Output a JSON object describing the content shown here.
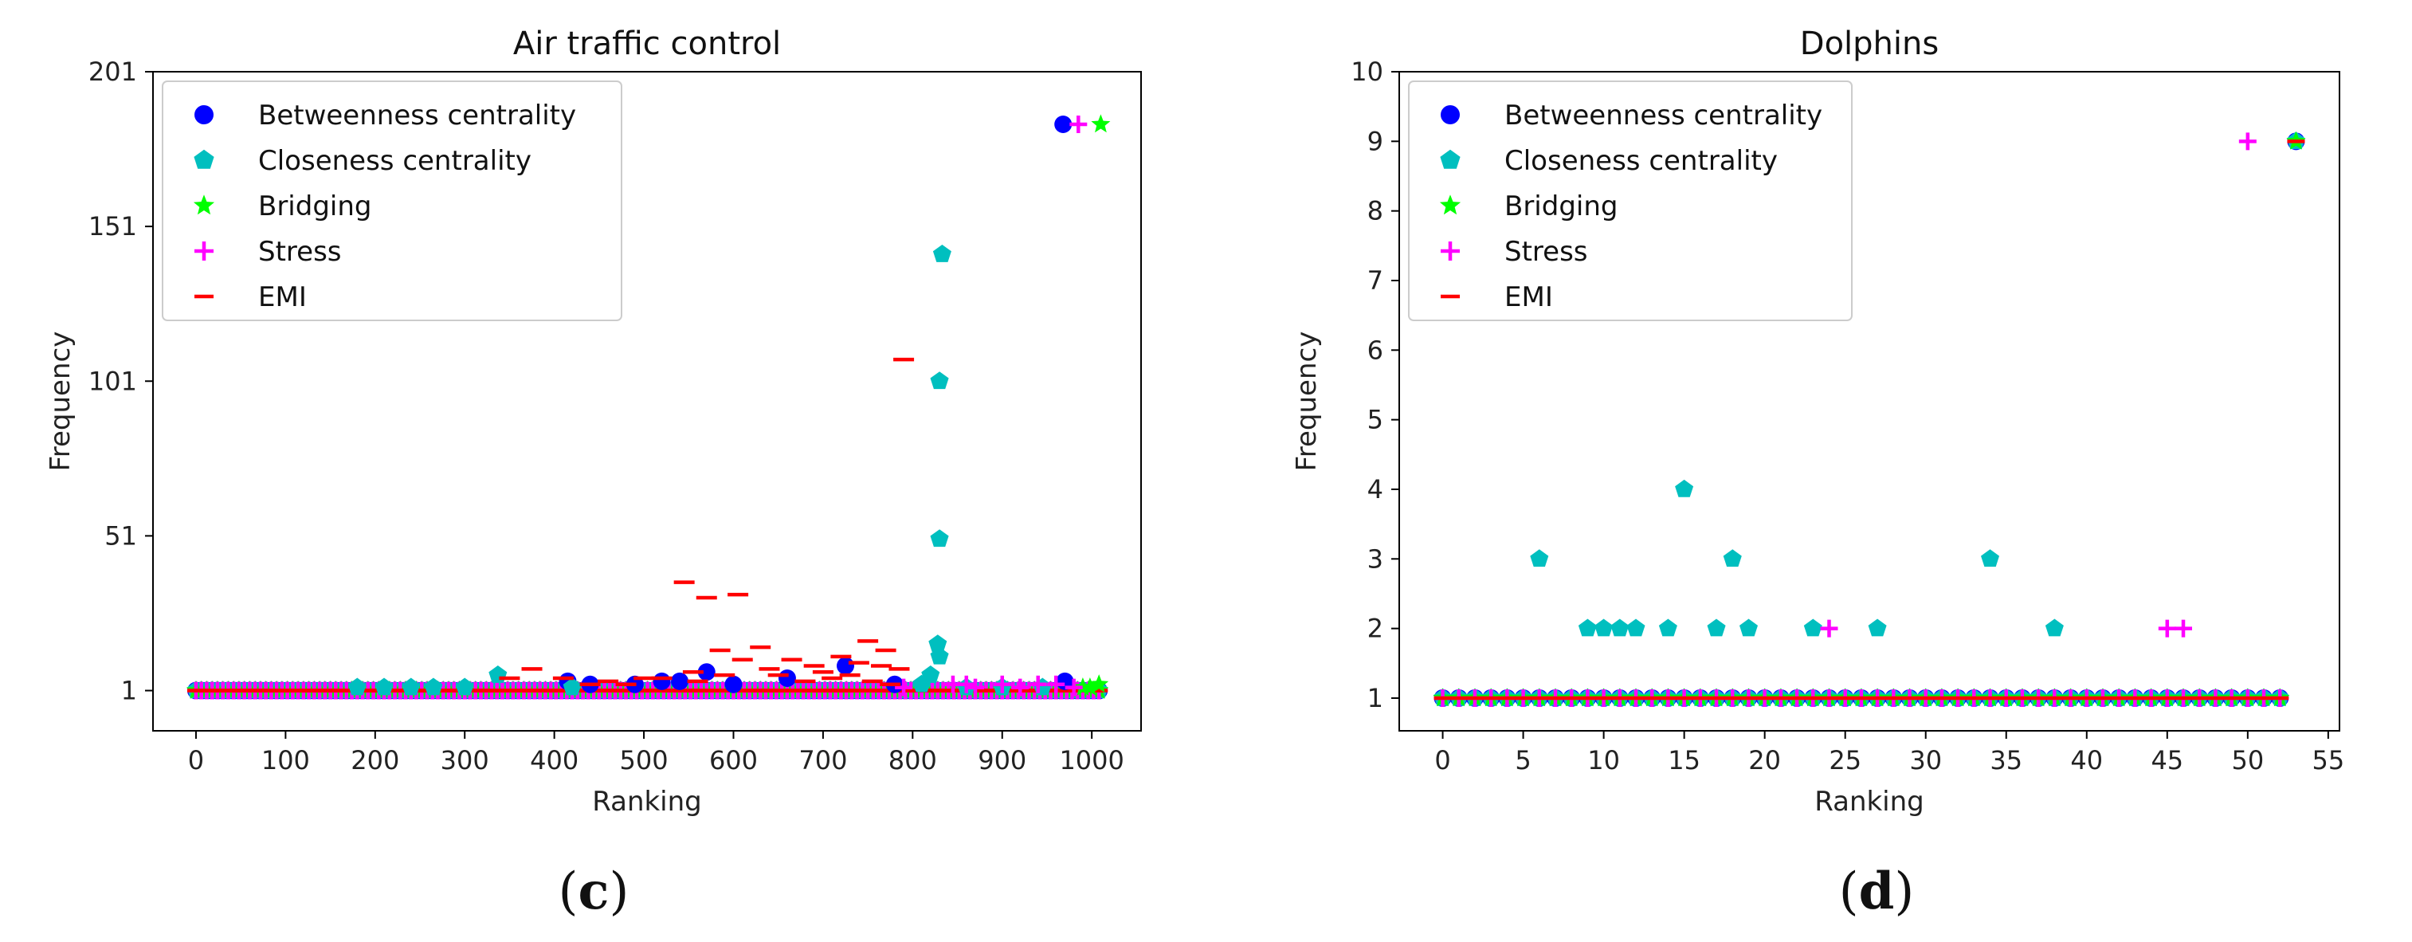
{
  "colors": {
    "betweenness": "#0000ff",
    "closeness": "#00bfbf",
    "bridging": "#00ff00",
    "stress": "#ff00ff",
    "emi": "#ff0000"
  },
  "legend_labels": [
    "Betweenness centrality",
    "Closeness centrality",
    "Bridging",
    "Stress",
    "EMI"
  ],
  "chart_data": [
    {
      "type": "scatter",
      "id": "c",
      "title": "Air traffic control",
      "xlabel": "Ranking",
      "ylabel": "Frequency",
      "xlim": [
        -48,
        1055
      ],
      "ylim": [
        -12,
        201
      ],
      "xticks": [
        0,
        100,
        200,
        300,
        400,
        500,
        600,
        700,
        800,
        900,
        1000
      ],
      "xtick_labels": [
        "0",
        "100",
        "200",
        "300",
        "400",
        "500",
        "600",
        "700",
        "800",
        "900",
        "1000"
      ],
      "yticks": [
        1,
        51,
        101,
        151,
        201
      ],
      "ytick_labels": [
        "1",
        "51",
        "101",
        "151",
        "201"
      ],
      "legend_position": "top-left",
      "caption_open": "(",
      "caption_letter": "c",
      "caption_close": ")",
      "baseline": {
        "start": 0,
        "end": 1010,
        "step": 6,
        "value": 1
      },
      "series": [
        {
          "name": "Betweenness centrality",
          "key": "betweenness",
          "marker": "circle",
          "points": [
            [
              968,
              184
            ],
            [
              570,
              7
            ],
            [
              725,
              9
            ],
            [
              660,
              5
            ],
            [
              415,
              4
            ],
            [
              520,
              4
            ],
            [
              540,
              4
            ],
            [
              490,
              3
            ],
            [
              440,
              3
            ],
            [
              600,
              3
            ],
            [
              970,
              4
            ],
            [
              780,
              3
            ]
          ]
        },
        {
          "name": "Closeness centrality",
          "key": "closeness",
          "marker": "pentagon",
          "points": [
            [
              833,
              142
            ],
            [
              830,
              101
            ],
            [
              830,
              50
            ],
            [
              828,
              16
            ],
            [
              830,
              12
            ],
            [
              820,
              6
            ],
            [
              337,
              6
            ],
            [
              810,
              3
            ],
            [
              180,
              2
            ],
            [
              210,
              2
            ],
            [
              240,
              2
            ],
            [
              265,
              2
            ],
            [
              300,
              2
            ],
            [
              420,
              2
            ],
            [
              860,
              2
            ],
            [
              900,
              2
            ],
            [
              945,
              2
            ]
          ]
        },
        {
          "name": "Bridging",
          "key": "bridging",
          "marker": "star",
          "points": [
            [
              1010,
              184
            ],
            [
              1008,
              3
            ],
            [
              990,
              2
            ],
            [
              998,
              2
            ]
          ]
        },
        {
          "name": "Stress",
          "key": "stress",
          "marker": "plus",
          "points": [
            [
              985,
              184
            ],
            [
              860,
              3
            ],
            [
              900,
              3
            ],
            [
              940,
              3
            ],
            [
              960,
              3
            ],
            [
              980,
              2
            ],
            [
              845,
              3
            ],
            [
              870,
              2
            ],
            [
              920,
              2
            ],
            [
              790,
              2
            ]
          ]
        },
        {
          "name": "EMI",
          "key": "emi",
          "marker": "dash",
          "points": [
            [
              790,
              108
            ],
            [
              545,
              36
            ],
            [
              570,
              31
            ],
            [
              605,
              32
            ],
            [
              585,
              14
            ],
            [
              630,
              15
            ],
            [
              750,
              17
            ],
            [
              770,
              14
            ],
            [
              665,
              11
            ],
            [
              690,
              9
            ],
            [
              720,
              12
            ],
            [
              740,
              10
            ],
            [
              765,
              9
            ],
            [
              785,
              8
            ],
            [
              610,
              11
            ],
            [
              640,
              8
            ],
            [
              700,
              7
            ],
            [
              375,
              8
            ],
            [
              410,
              5
            ],
            [
              460,
              4
            ],
            [
              500,
              5
            ],
            [
              520,
              5
            ],
            [
              560,
              4
            ],
            [
              590,
              6
            ],
            [
              650,
              6
            ],
            [
              710,
              5
            ],
            [
              730,
              6
            ],
            [
              755,
              4
            ],
            [
              775,
              3
            ],
            [
              350,
              5
            ],
            [
              440,
              3
            ],
            [
              480,
              3
            ],
            [
              555,
              7
            ],
            [
              680,
              4
            ]
          ]
        }
      ]
    },
    {
      "type": "scatter",
      "id": "d",
      "title": "Dolphins",
      "xlabel": "Ranking",
      "ylabel": "Frequency",
      "xlim": [
        -2.7,
        55.7
      ],
      "ylim": [
        0.53,
        10
      ],
      "xticks": [
        0,
        5,
        10,
        15,
        20,
        25,
        30,
        35,
        40,
        45,
        50,
        55
      ],
      "xtick_labels": [
        "0",
        "5",
        "10",
        "15",
        "20",
        "25",
        "30",
        "35",
        "40",
        "45",
        "50",
        "55"
      ],
      "yticks": [
        1,
        2,
        3,
        4,
        5,
        6,
        7,
        8,
        9,
        10
      ],
      "ytick_labels": [
        "1",
        "2",
        "3",
        "4",
        "5",
        "6",
        "7",
        "8",
        "9",
        "10"
      ],
      "legend_position": "top-left",
      "caption_open": "(",
      "caption_letter": "d",
      "caption_close": ")",
      "baseline": {
        "start": 0,
        "end": 52,
        "step": 1,
        "value": 1
      },
      "series": [
        {
          "name": "Betweenness centrality",
          "key": "betweenness",
          "marker": "circle",
          "points": [
            [
              53,
              9
            ]
          ]
        },
        {
          "name": "Closeness centrality",
          "key": "closeness",
          "marker": "pentagon",
          "points": [
            [
              6,
              3
            ],
            [
              9,
              2
            ],
            [
              10,
              2
            ],
            [
              11,
              2
            ],
            [
              12,
              2
            ],
            [
              14,
              2
            ],
            [
              15,
              4
            ],
            [
              17,
              2
            ],
            [
              18,
              3
            ],
            [
              19,
              2
            ],
            [
              23,
              2
            ],
            [
              27,
              2
            ],
            [
              34,
              3
            ],
            [
              38,
              2
            ],
            [
              53,
              9
            ]
          ]
        },
        {
          "name": "Bridging",
          "key": "bridging",
          "marker": "star",
          "points": [
            [
              53,
              9
            ]
          ]
        },
        {
          "name": "Stress",
          "key": "stress",
          "marker": "plus",
          "points": [
            [
              24,
              2
            ],
            [
              45,
              2
            ],
            [
              46,
              2
            ],
            [
              50,
              9
            ]
          ]
        },
        {
          "name": "EMI",
          "key": "emi",
          "marker": "dash",
          "points": [
            [
              53,
              9
            ]
          ]
        }
      ]
    }
  ]
}
